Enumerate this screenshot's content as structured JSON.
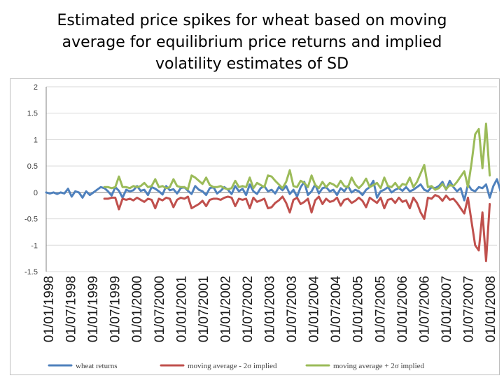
{
  "slide": {
    "title_line1": "Estimated price spikes for wheat based on moving",
    "title_line2": "average for equilibrium price returns and implied",
    "title_line3": "volatility estimates of SD"
  },
  "chart_data": {
    "type": "line",
    "title": "",
    "xlabel": "",
    "ylabel": "",
    "ylim": [
      -1.5,
      2
    ],
    "yticks": [
      2,
      1.5,
      1,
      0.5,
      0,
      -0.5,
      -1,
      -1.5
    ],
    "ytick_labels": [
      "2",
      "1.5",
      "1",
      "0.5",
      "0",
      "-0.5",
      "-1",
      "-1.5"
    ],
    "xlim": [
      0,
      124
    ],
    "xtick_labels": [
      "01/01/1998",
      "01/07/1998",
      "01/01/1999",
      "01/07/1999",
      "01/01/2000",
      "01/07/2000",
      "01/01/2001",
      "01/07/2001",
      "01/01/2002",
      "01/07/2002",
      "01/01/2003",
      "01/07/2003",
      "01/01/2004",
      "01/07/2004",
      "01/01/2005",
      "01/07/2005",
      "01/01/2006",
      "01/07/2006",
      "01/01/2007",
      "01/07/2007",
      "01/01/2008"
    ],
    "grid": true,
    "legend_position": "bottom",
    "series": [
      {
        "name": "wheat returns",
        "color": "#4f81bd",
        "start": 0,
        "values": [
          0,
          -0.02,
          0,
          -0.03,
          0,
          -0.02,
          0.07,
          -0.08,
          0.02,
          0,
          -0.1,
          0.02,
          -0.05,
          0,
          0.05,
          0.1,
          0.08,
          0.02,
          -0.06,
          0.1,
          0.03,
          -0.1,
          0.05,
          0.02,
          0.04,
          0.12,
          0.03,
          0.05,
          -0.05,
          0.1,
          0.07,
          0.02,
          -0.04,
          0.12,
          0.04,
          0.06,
          -0.02,
          0.08,
          0.1,
          0.03,
          -0.03,
          0.12,
          0.05,
          0.02,
          -0.05,
          0.08,
          0.1,
          -0.02,
          0.03,
          0.1,
          0.05,
          -0.03,
          0.12,
          0.02,
          0.07,
          -0.05,
          0.15,
          0.02,
          -0.03,
          0.08,
          0.12,
          0.02,
          0.05,
          -0.02,
          0.1,
          0.04,
          0.12,
          -0.03,
          0.05,
          -0.08,
          0.1,
          0.2,
          -0.05,
          0.02,
          0.15,
          -0.02,
          0.08,
          0.1,
          0.02,
          0.05,
          -0.05,
          0.08,
          0.02,
          0.12,
          0,
          0.05,
          0.02,
          -0.05,
          0.05,
          0.1,
          0.22,
          -0.1,
          0.02,
          0.05,
          0.1,
          0,
          0.05,
          0.08,
          0.03,
          0.1,
          0.02,
          0.05,
          0.1,
          0.15,
          0.05,
          0.02,
          0.1,
          0.08,
          0.12,
          0.2,
          0.05,
          0.22,
          0.1,
          0.02,
          0.08,
          -0.15,
          0.15,
          0.05,
          0.02,
          0.1,
          0.08,
          0.15,
          -0.1,
          0.12,
          0.25,
          0.02,
          0.22,
          0.1,
          0.05,
          0.1
        ]
      },
      {
        "name": "moving average - 2σ implied",
        "color": "#c0504d",
        "start": 16,
        "values": [
          -0.12,
          -0.12,
          -0.1,
          -0.1,
          -0.32,
          -0.12,
          -0.14,
          -0.12,
          -0.15,
          -0.1,
          -0.14,
          -0.18,
          -0.12,
          -0.14,
          -0.3,
          -0.12,
          -0.15,
          -0.1,
          -0.12,
          -0.28,
          -0.14,
          -0.1,
          -0.12,
          -0.08,
          -0.3,
          -0.26,
          -0.22,
          -0.16,
          -0.26,
          -0.14,
          -0.12,
          -0.12,
          -0.14,
          -0.1,
          -0.08,
          -0.1,
          -0.26,
          -0.12,
          -0.14,
          -0.12,
          -0.3,
          -0.1,
          -0.18,
          -0.15,
          -0.12,
          -0.3,
          -0.28,
          -0.2,
          -0.15,
          -0.08,
          -0.2,
          -0.38,
          -0.14,
          -0.1,
          -0.22,
          -0.18,
          -0.12,
          -0.38,
          -0.15,
          -0.08,
          -0.22,
          -0.12,
          -0.18,
          -0.16,
          -0.1,
          -0.25,
          -0.14,
          -0.12,
          -0.2,
          -0.16,
          -0.1,
          -0.16,
          -0.28,
          -0.1,
          -0.15,
          -0.2,
          -0.1,
          -0.3,
          -0.14,
          -0.12,
          -0.2,
          -0.1,
          -0.18,
          -0.15,
          -0.3,
          -0.1,
          -0.2,
          -0.38,
          -0.5,
          -0.1,
          -0.12,
          -0.05,
          -0.08,
          -0.16,
          -0.06,
          -0.14,
          -0.12,
          -0.2,
          -0.3,
          -0.4,
          -0.1,
          -0.55,
          -1,
          -1.1,
          -0.38,
          -1.3,
          -0.22
        ]
      },
      {
        "name": "moving average + 2σ implied",
        "color": "#9bbb59",
        "start": 16,
        "values": [
          0.1,
          0.1,
          0.08,
          0.1,
          0.3,
          0.1,
          0.1,
          0.08,
          0.12,
          0.1,
          0.12,
          0.18,
          0.1,
          0.12,
          0.25,
          0.1,
          0.12,
          0.08,
          0.1,
          0.25,
          0.12,
          0.1,
          0.1,
          0.06,
          0.32,
          0.28,
          0.22,
          0.16,
          0.28,
          0.14,
          0.1,
          0.1,
          0.12,
          0.08,
          0.06,
          0.08,
          0.22,
          0.1,
          0.12,
          0.1,
          0.28,
          0.08,
          0.18,
          0.14,
          0.1,
          0.32,
          0.3,
          0.22,
          0.15,
          0.08,
          0.2,
          0.42,
          0.12,
          0.1,
          0.22,
          0.18,
          0.1,
          0.32,
          0.14,
          0.08,
          0.2,
          0.1,
          0.18,
          0.15,
          0.1,
          0.22,
          0.12,
          0.1,
          0.28,
          0.15,
          0.08,
          0.15,
          0.26,
          0.1,
          0.14,
          0.18,
          0.08,
          0.28,
          0.12,
          0.1,
          0.18,
          0.08,
          0.16,
          0.14,
          0.28,
          0.1,
          0.2,
          0.36,
          0.52,
          0.1,
          0.12,
          0.05,
          0.08,
          0.16,
          0.06,
          0.14,
          0.12,
          0.2,
          0.3,
          0.4,
          0.1,
          0.55,
          1.1,
          1.2,
          0.46,
          1.3,
          0.32
        ]
      }
    ]
  }
}
